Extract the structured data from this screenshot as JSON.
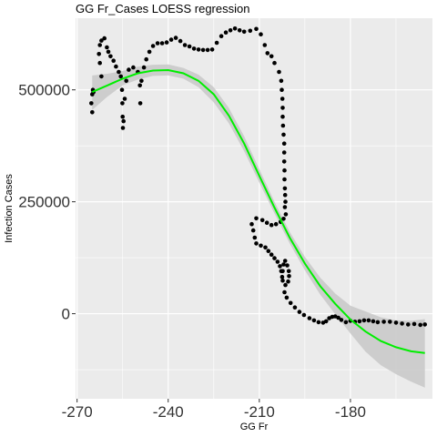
{
  "chart_data": {
    "type": "scatter",
    "title": "GG Fr_Cases LOESS regression",
    "xlabel": "GG Fr",
    "ylabel": "Infection Cases",
    "xlim": [
      -270.5,
      -153
    ],
    "ylim": [
      -190000,
      660000
    ],
    "x_ticks": [
      -270,
      -240,
      -210,
      -180
    ],
    "x_tick_labels": [
      "-270",
      "-240",
      "-210",
      "-180"
    ],
    "y_ticks": [
      0,
      250000,
      500000
    ],
    "y_tick_labels": [
      "0",
      "250000",
      "500000"
    ],
    "grid": true,
    "legend": "none",
    "colors": {
      "panel": "#ebebeb",
      "grid": "#ffffff",
      "points": "#000000",
      "fit": "#00ee00",
      "band": "#c8c8c8"
    },
    "series": [
      {
        "type": "scatter",
        "points": [
          [
            -265,
            450000
          ],
          [
            -265.3,
            470000
          ],
          [
            -265,
            490000
          ],
          [
            -264.8,
            500000
          ],
          [
            -264.6,
            495000
          ],
          [
            -262,
            530000
          ],
          [
            -262.5,
            560000
          ],
          [
            -262.8,
            580000
          ],
          [
            -262.5,
            600000
          ],
          [
            -262,
            610000
          ],
          [
            -261,
            615000
          ],
          [
            -260.2,
            595000
          ],
          [
            -259.7,
            585000
          ],
          [
            -259,
            575000
          ],
          [
            -258,
            565000
          ],
          [
            -257.2,
            552000
          ],
          [
            -256.3,
            540000
          ],
          [
            -255.6,
            530000
          ],
          [
            -255.2,
            500000
          ],
          [
            -255.1,
            470000
          ],
          [
            -255,
            440000
          ],
          [
            -254.9,
            415000
          ],
          [
            -254.7,
            430000
          ],
          [
            -254.3,
            480000
          ],
          [
            -253.8,
            520000
          ],
          [
            -253,
            545000
          ],
          [
            -251.5,
            550000
          ],
          [
            -250,
            540000
          ],
          [
            -249.3,
            510000
          ],
          [
            -249.2,
            470000
          ],
          [
            -248.8,
            520000
          ],
          [
            -248,
            550000
          ],
          [
            -247.2,
            568000
          ],
          [
            -246.2,
            585000
          ],
          [
            -245,
            598000
          ],
          [
            -243.5,
            604000
          ],
          [
            -242,
            604000
          ],
          [
            -240.5,
            606000
          ],
          [
            -239,
            612000
          ],
          [
            -237.5,
            616000
          ],
          [
            -236,
            609000
          ],
          [
            -234.5,
            600000
          ],
          [
            -233,
            597000
          ],
          [
            -231.5,
            592000
          ],
          [
            -230,
            590000
          ],
          [
            -228.5,
            589000
          ],
          [
            -227,
            589000
          ],
          [
            -225.5,
            590000
          ],
          [
            -224,
            605000
          ],
          [
            -222.5,
            620000
          ],
          [
            -221,
            628000
          ],
          [
            -219.5,
            633000
          ],
          [
            -218,
            637000
          ],
          [
            -216.5,
            633000
          ],
          [
            -215,
            630000
          ],
          [
            -213,
            632000
          ],
          [
            -211,
            636000
          ],
          [
            -209.5,
            624000
          ],
          [
            -208.2,
            600000
          ],
          [
            -207.3,
            582000
          ],
          [
            -206,
            575000
          ],
          [
            -205,
            560000
          ],
          [
            -203.5,
            540000
          ],
          [
            -202.8,
            520000
          ],
          [
            -202.6,
            500000
          ],
          [
            -202.4,
            480000
          ],
          [
            -202.3,
            460000
          ],
          [
            -202.3,
            440000
          ],
          [
            -202.2,
            420000
          ],
          [
            -202,
            400000
          ],
          [
            -201.8,
            380000
          ],
          [
            -201.8,
            360000
          ],
          [
            -201.8,
            340000
          ],
          [
            -201.7,
            320000
          ],
          [
            -201.7,
            300000
          ],
          [
            -201.6,
            280000
          ],
          [
            -201.5,
            265000
          ],
          [
            -201.4,
            250000
          ],
          [
            -201.6,
            238000
          ],
          [
            -201.3,
            222000
          ],
          [
            -202,
            212000
          ],
          [
            -203,
            205000
          ],
          [
            -204.5,
            200000
          ],
          [
            -206,
            198000
          ],
          [
            -207.5,
            203000
          ],
          [
            -209,
            209000
          ],
          [
            -211,
            213000
          ],
          [
            -212.5,
            200000
          ],
          [
            -212,
            186000
          ],
          [
            -211.5,
            170000
          ],
          [
            -211,
            157000
          ],
          [
            -209.5,
            152000
          ],
          [
            -208,
            148000
          ],
          [
            -207,
            140000
          ],
          [
            -206,
            132000
          ],
          [
            -205,
            124000
          ],
          [
            -204,
            116000
          ],
          [
            -203.2,
            106000
          ],
          [
            -202.8,
            95000
          ],
          [
            -202.5,
            82000
          ],
          [
            -202.3,
            74000
          ],
          [
            -202.3,
            95000
          ],
          [
            -202,
            110000
          ],
          [
            -201.5,
            118000
          ],
          [
            -200.8,
            108000
          ],
          [
            -200.3,
            95000
          ],
          [
            -200.2,
            84000
          ],
          [
            -200.5,
            72000
          ],
          [
            -201.4,
            64000
          ],
          [
            -201.7,
            48000
          ],
          [
            -201,
            36000
          ],
          [
            -199.7,
            24000
          ],
          [
            -198.3,
            14000
          ],
          [
            -196.8,
            4000
          ],
          [
            -195.3,
            -3000
          ],
          [
            -193.5,
            -10000
          ],
          [
            -192,
            -15000
          ],
          [
            -190.5,
            -19000
          ],
          [
            -189,
            -20000
          ],
          [
            -188,
            -17000
          ],
          [
            -187,
            -10000
          ],
          [
            -186,
            -7000
          ],
          [
            -185,
            -6000
          ],
          [
            -184,
            -9000
          ],
          [
            -183,
            -14000
          ],
          [
            -181.5,
            -19000
          ],
          [
            -180,
            -16000
          ],
          [
            -178.5,
            -18000
          ],
          [
            -177,
            -17000
          ],
          [
            -175.5,
            -15000
          ],
          [
            -174,
            -15000
          ],
          [
            -172.5,
            -17000
          ],
          [
            -171,
            -19000
          ],
          [
            -169,
            -18000
          ],
          [
            -167,
            -18000
          ],
          [
            -165,
            -20000
          ],
          [
            -163,
            -22000
          ],
          [
            -161,
            -24000
          ],
          [
            -159,
            -23000
          ],
          [
            -157,
            -25000
          ],
          [
            -155.5,
            -24000
          ]
        ]
      },
      {
        "type": "line",
        "name": "LOESS fit",
        "x": [
          -265,
          -260,
          -255,
          -250,
          -245,
          -240,
          -235,
          -230,
          -225,
          -220,
          -215,
          -210,
          -205,
          -200,
          -195,
          -190,
          -185,
          -180,
          -175,
          -170,
          -165,
          -160,
          -155.5
        ],
        "y": [
          495000,
          510000,
          525000,
          537000,
          543000,
          544000,
          537000,
          520000,
          490000,
          442000,
          380000,
          308000,
          237000,
          170000,
          112000,
          62000,
          22000,
          -13000,
          -40000,
          -61000,
          -75000,
          -84000,
          -88000
        ],
        "lower": [
          455000,
          485000,
          510000,
          523000,
          531000,
          532000,
          525000,
          506000,
          472000,
          425000,
          363000,
          293000,
          224000,
          157000,
          97000,
          43000,
          -1000,
          -44000,
          -85000,
          -115000,
          -135000,
          -152000,
          -165000
        ],
        "upper": [
          532000,
          536000,
          542000,
          552000,
          556000,
          557000,
          549000,
          534000,
          506000,
          459000,
          396000,
          323000,
          250000,
          183000,
          127000,
          81000,
          45000,
          18000,
          5000,
          -8000,
          -15000,
          -16000,
          -12000
        ]
      }
    ]
  }
}
